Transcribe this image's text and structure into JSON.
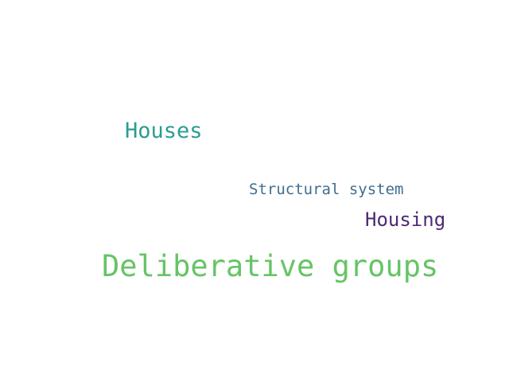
{
  "words": [
    {
      "text": "Houses",
      "color": "#2a9d8f"
    },
    {
      "text": "Structural system",
      "color": "#3e6e8e"
    },
    {
      "text": "Housing",
      "color": "#4b2a74"
    },
    {
      "text": "Deliberative groups",
      "color": "#66c466"
    }
  ]
}
